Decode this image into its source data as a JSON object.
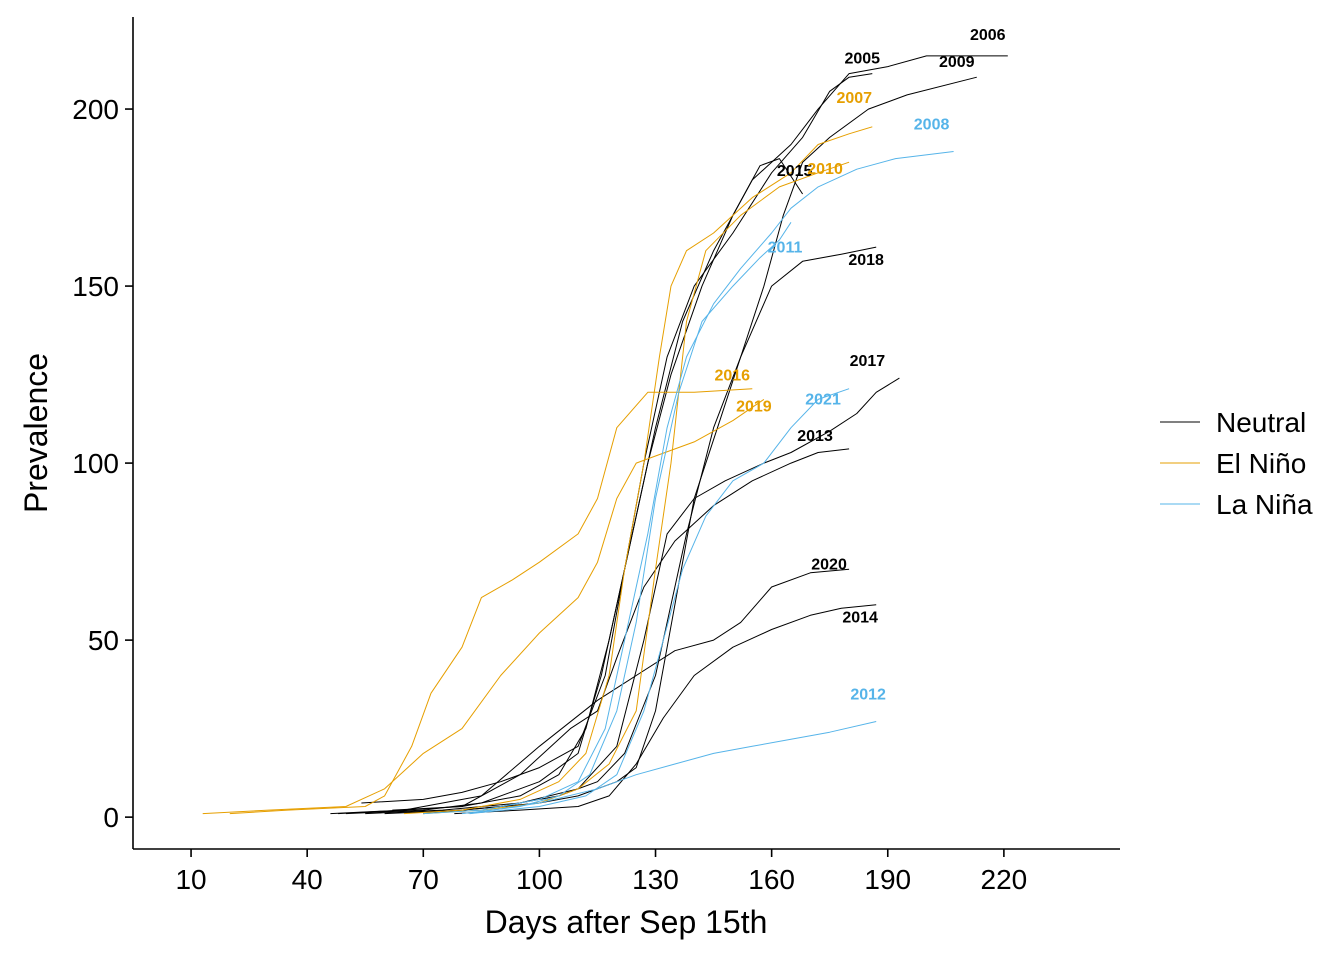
{
  "chart_data": {
    "type": "line",
    "title": "",
    "xlabel": "Days after Sep 15th",
    "ylabel": "Prevalence",
    "xlim": [
      -5,
      250
    ],
    "ylim": [
      -9,
      226
    ],
    "xticks": [
      10,
      40,
      70,
      100,
      130,
      160,
      190,
      220
    ],
    "yticks": [
      0,
      50,
      100,
      150,
      200
    ],
    "grid": false,
    "legend_position": "right",
    "colors": {
      "Neutral": "#000000",
      "El Niño": "#E69F00",
      "La Niña": "#56B4E9"
    },
    "legend": [
      {
        "label": "Neutral",
        "color": "#000000"
      },
      {
        "label": "El Niño",
        "color": "#E69F00"
      },
      {
        "label": "La Niña",
        "color": "#56B4E9"
      }
    ],
    "series": [
      {
        "label": "2005",
        "phase": "Neutral",
        "points": [
          [
            54,
            4
          ],
          [
            70,
            5
          ],
          [
            80,
            7
          ],
          [
            90,
            10
          ],
          [
            100,
            14
          ],
          [
            110,
            20
          ],
          [
            117,
            40
          ],
          [
            122,
            70
          ],
          [
            127,
            100
          ],
          [
            133,
            130
          ],
          [
            140,
            150
          ],
          [
            150,
            165
          ],
          [
            160,
            182
          ],
          [
            168,
            192
          ],
          [
            175,
            205
          ],
          [
            180,
            209
          ],
          [
            186,
            210
          ]
        ]
      },
      {
        "label": "2006",
        "phase": "Neutral",
        "points": [
          [
            62,
            2
          ],
          [
            80,
            3
          ],
          [
            95,
            6
          ],
          [
            105,
            12
          ],
          [
            112,
            25
          ],
          [
            118,
            50
          ],
          [
            124,
            80
          ],
          [
            130,
            110
          ],
          [
            137,
            140
          ],
          [
            145,
            160
          ],
          [
            155,
            180
          ],
          [
            165,
            190
          ],
          [
            172,
            200
          ],
          [
            180,
            210
          ],
          [
            190,
            212
          ],
          [
            200,
            215
          ],
          [
            221,
            215
          ]
        ]
      },
      {
        "label": "2009",
        "phase": "Neutral",
        "points": [
          [
            60,
            1
          ],
          [
            80,
            2
          ],
          [
            100,
            4
          ],
          [
            110,
            6
          ],
          [
            120,
            10
          ],
          [
            125,
            14
          ],
          [
            130,
            30
          ],
          [
            135,
            60
          ],
          [
            140,
            90
          ],
          [
            146,
            110
          ],
          [
            152,
            130
          ],
          [
            158,
            150
          ],
          [
            163,
            170
          ],
          [
            168,
            185
          ],
          [
            175,
            192
          ],
          [
            185,
            200
          ],
          [
            195,
            204
          ],
          [
            213,
            209
          ]
        ]
      },
      {
        "label": "2015",
        "phase": "Neutral",
        "points": [
          [
            50,
            1
          ],
          [
            70,
            2
          ],
          [
            85,
            4
          ],
          [
            100,
            10
          ],
          [
            110,
            18
          ],
          [
            116,
            40
          ],
          [
            122,
            70
          ],
          [
            128,
            100
          ],
          [
            134,
            125
          ],
          [
            142,
            150
          ],
          [
            150,
            170
          ],
          [
            157,
            184
          ],
          [
            162,
            186
          ],
          [
            168,
            176
          ]
        ]
      },
      {
        "label": "2018",
        "phase": "Neutral",
        "points": [
          [
            70,
            1
          ],
          [
            90,
            3
          ],
          [
            105,
            6
          ],
          [
            115,
            10
          ],
          [
            122,
            18
          ],
          [
            130,
            40
          ],
          [
            138,
            80
          ],
          [
            145,
            110
          ],
          [
            152,
            130
          ],
          [
            160,
            150
          ],
          [
            168,
            157
          ],
          [
            178,
            159
          ],
          [
            187,
            161
          ]
        ]
      },
      {
        "label": "2017",
        "phase": "Neutral",
        "points": [
          [
            55,
            1
          ],
          [
            75,
            2
          ],
          [
            95,
            4
          ],
          [
            110,
            8
          ],
          [
            120,
            20
          ],
          [
            127,
            50
          ],
          [
            133,
            80
          ],
          [
            140,
            90
          ],
          [
            148,
            95
          ],
          [
            158,
            100
          ],
          [
            165,
            103
          ],
          [
            175,
            109
          ],
          [
            182,
            114
          ],
          [
            187,
            120
          ],
          [
            193,
            124
          ]
        ]
      },
      {
        "label": "2013",
        "phase": "Neutral",
        "points": [
          [
            48,
            1
          ],
          [
            65,
            2
          ],
          [
            80,
            3
          ],
          [
            95,
            12
          ],
          [
            108,
            25
          ],
          [
            115,
            30
          ],
          [
            120,
            45
          ],
          [
            127,
            65
          ],
          [
            135,
            78
          ],
          [
            145,
            88
          ],
          [
            155,
            95
          ],
          [
            165,
            100
          ],
          [
            172,
            103
          ],
          [
            180,
            104
          ]
        ]
      },
      {
        "label": "2020",
        "phase": "Neutral",
        "points": [
          [
            46,
            1
          ],
          [
            65,
            2
          ],
          [
            85,
            6
          ],
          [
            100,
            20
          ],
          [
            115,
            33
          ],
          [
            125,
            40
          ],
          [
            135,
            47
          ],
          [
            145,
            50
          ],
          [
            152,
            55
          ],
          [
            160,
            65
          ],
          [
            170,
            69
          ],
          [
            180,
            70
          ]
        ]
      },
      {
        "label": "2014",
        "phase": "Neutral",
        "points": [
          [
            78,
            1
          ],
          [
            95,
            2
          ],
          [
            110,
            3
          ],
          [
            118,
            6
          ],
          [
            125,
            15
          ],
          [
            132,
            28
          ],
          [
            140,
            40
          ],
          [
            150,
            48
          ],
          [
            160,
            53
          ],
          [
            170,
            57
          ],
          [
            178,
            59
          ],
          [
            187,
            60
          ]
        ]
      },
      {
        "label": "2016",
        "phase": "El Niño",
        "points": [
          [
            20,
            1
          ],
          [
            35,
            2
          ],
          [
            55,
            3
          ],
          [
            60,
            6
          ],
          [
            67,
            20
          ],
          [
            72,
            35
          ],
          [
            80,
            48
          ],
          [
            85,
            62
          ],
          [
            93,
            67
          ],
          [
            100,
            72
          ],
          [
            110,
            80
          ],
          [
            115,
            90
          ],
          [
            120,
            110
          ],
          [
            128,
            120
          ],
          [
            140,
            120
          ],
          [
            155,
            121
          ]
        ]
      },
      {
        "label": "2019",
        "phase": "El Niño",
        "points": [
          [
            13,
            1
          ],
          [
            30,
            2
          ],
          [
            50,
            3
          ],
          [
            60,
            8
          ],
          [
            70,
            18
          ],
          [
            80,
            25
          ],
          [
            90,
            40
          ],
          [
            100,
            52
          ],
          [
            110,
            62
          ],
          [
            115,
            72
          ],
          [
            120,
            90
          ],
          [
            125,
            100
          ],
          [
            130,
            102
          ],
          [
            140,
            106
          ],
          [
            150,
            112
          ],
          [
            158,
            118
          ]
        ]
      },
      {
        "label": "2007",
        "phase": "El Niño",
        "points": [
          [
            65,
            1
          ],
          [
            80,
            2
          ],
          [
            95,
            5
          ],
          [
            105,
            10
          ],
          [
            112,
            18
          ],
          [
            118,
            40
          ],
          [
            122,
            70
          ],
          [
            127,
            100
          ],
          [
            131,
            130
          ],
          [
            134,
            150
          ],
          [
            138,
            160
          ],
          [
            145,
            165
          ],
          [
            155,
            175
          ],
          [
            165,
            182
          ],
          [
            172,
            190
          ],
          [
            180,
            193
          ],
          [
            186,
            195
          ]
        ]
      },
      {
        "label": "2010",
        "phase": "El Niño",
        "points": [
          [
            70,
            1
          ],
          [
            85,
            2
          ],
          [
            100,
            4
          ],
          [
            110,
            8
          ],
          [
            118,
            15
          ],
          [
            125,
            30
          ],
          [
            130,
            70
          ],
          [
            134,
            100
          ],
          [
            138,
            140
          ],
          [
            143,
            160
          ],
          [
            152,
            170
          ],
          [
            162,
            178
          ],
          [
            172,
            182
          ],
          [
            180,
            185
          ]
        ]
      },
      {
        "label": "2008",
        "phase": "La Niña",
        "points": [
          [
            70,
            1
          ],
          [
            85,
            2
          ],
          [
            100,
            5
          ],
          [
            110,
            10
          ],
          [
            117,
            25
          ],
          [
            122,
            50
          ],
          [
            128,
            80
          ],
          [
            133,
            110
          ],
          [
            138,
            130
          ],
          [
            145,
            145
          ],
          [
            152,
            155
          ],
          [
            160,
            165
          ],
          [
            165,
            172
          ],
          [
            172,
            178
          ],
          [
            182,
            183
          ],
          [
            192,
            186
          ],
          [
            207,
            188
          ]
        ]
      },
      {
        "label": "2011",
        "phase": "La Niña",
        "points": [
          [
            80,
            1
          ],
          [
            95,
            3
          ],
          [
            105,
            6
          ],
          [
            113,
            12
          ],
          [
            120,
            30
          ],
          [
            125,
            55
          ],
          [
            130,
            90
          ],
          [
            136,
            120
          ],
          [
            142,
            140
          ],
          [
            150,
            150
          ],
          [
            157,
            158
          ],
          [
            162,
            163
          ],
          [
            165,
            168
          ]
        ]
      },
      {
        "label": "2021",
        "phase": "La Niña",
        "points": [
          [
            82,
            1
          ],
          [
            100,
            3
          ],
          [
            112,
            6
          ],
          [
            120,
            12
          ],
          [
            127,
            30
          ],
          [
            132,
            50
          ],
          [
            137,
            70
          ],
          [
            143,
            85
          ],
          [
            150,
            95
          ],
          [
            158,
            100
          ],
          [
            165,
            110
          ],
          [
            172,
            118
          ],
          [
            180,
            121
          ]
        ]
      },
      {
        "label": "2012",
        "phase": "La Niña",
        "points": [
          [
            82,
            1
          ],
          [
            100,
            4
          ],
          [
            115,
            8
          ],
          [
            125,
            12
          ],
          [
            135,
            15
          ],
          [
            145,
            18
          ],
          [
            155,
            20
          ],
          [
            165,
            22
          ],
          [
            175,
            24
          ],
          [
            187,
            27
          ]
        ]
      }
    ]
  }
}
